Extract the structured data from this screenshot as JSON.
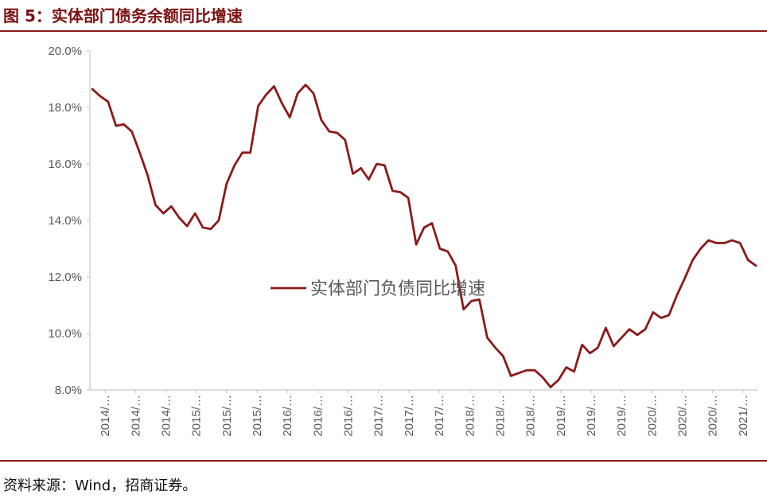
{
  "figure_title": "图 5：实体部门债务余额同比增速",
  "source_note": "资料来源：Wind，招商证券。",
  "colors": {
    "accent": "#8b1a1a",
    "series": "#8b1a1a",
    "axis": "#bfbfbf",
    "tick_text": "#595959"
  },
  "chart_data": {
    "type": "line",
    "ylim": [
      8.0,
      20.0
    ],
    "yticks": [
      "20.0%",
      "18.0%",
      "16.0%",
      "14.0%",
      "12.0%",
      "10.0%",
      "8.0%"
    ],
    "ytick_values": [
      20,
      18,
      16,
      14,
      12,
      10,
      8
    ],
    "xtick_labels": [
      "2014/…",
      "2014/…",
      "2014/…",
      "2015/…",
      "2015/…",
      "2015/…",
      "2016/…",
      "2016/…",
      "2016/…",
      "2017/…",
      "2017/…",
      "2017/…",
      "2018/…",
      "2018/…",
      "2018/…",
      "2019/…",
      "2019/…",
      "2019/…",
      "2020/…",
      "2020/…",
      "2020/…",
      "2021/…"
    ],
    "grid": false,
    "legend": "center",
    "series": [
      {
        "name": "实体部门负债同比增速",
        "values": [
          18.65,
          18.4,
          18.2,
          17.35,
          17.4,
          17.15,
          16.4,
          15.6,
          14.55,
          14.25,
          14.5,
          14.1,
          13.8,
          14.25,
          13.75,
          13.7,
          14.0,
          15.3,
          15.95,
          16.4,
          16.4,
          18.05,
          18.45,
          18.75,
          18.15,
          17.65,
          18.5,
          18.8,
          18.5,
          17.55,
          17.15,
          17.1,
          16.85,
          15.65,
          15.85,
          15.45,
          16.0,
          15.95,
          15.05,
          15.0,
          14.8,
          13.15,
          13.75,
          13.9,
          13.0,
          12.9,
          12.4,
          10.85,
          11.15,
          11.2,
          9.85,
          9.5,
          9.2,
          8.5,
          8.6,
          8.7,
          8.7,
          8.45,
          8.1,
          8.35,
          8.8,
          8.65,
          9.6,
          9.3,
          9.5,
          10.2,
          9.55,
          9.85,
          10.15,
          9.95,
          10.15,
          10.75,
          10.55,
          10.65,
          11.35,
          11.95,
          12.6,
          13.0,
          13.3,
          13.2,
          13.2,
          13.3,
          13.2,
          12.6,
          12.4
        ]
      }
    ]
  }
}
